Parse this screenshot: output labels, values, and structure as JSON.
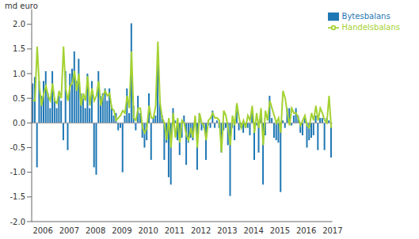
{
  "chart_data": {
    "type": "bar",
    "y_label": "md euro",
    "categories": [
      "2006",
      null,
      null,
      null,
      null,
      null,
      null,
      null,
      null,
      null,
      null,
      null,
      "2007",
      null,
      null,
      null,
      null,
      null,
      null,
      null,
      null,
      null,
      null,
      null,
      "2008",
      null,
      null,
      null,
      null,
      null,
      null,
      null,
      null,
      null,
      null,
      null,
      "2009",
      null,
      null,
      null,
      null,
      null,
      null,
      null,
      null,
      null,
      null,
      null,
      "2010",
      null,
      null,
      null,
      null,
      null,
      null,
      null,
      null,
      null,
      null,
      null,
      "2011",
      null,
      null,
      null,
      null,
      null,
      null,
      null,
      null,
      null,
      null,
      null,
      "2012",
      null,
      null,
      null,
      null,
      null,
      null,
      null,
      null,
      null,
      null,
      null,
      "2013",
      null,
      null,
      null,
      null,
      null,
      null,
      null,
      null,
      null,
      null,
      null,
      "2014",
      null,
      null,
      null,
      null,
      null,
      null,
      null,
      null,
      null,
      null,
      null,
      "2015",
      null,
      null,
      null,
      null,
      null,
      null,
      null,
      null,
      null,
      null,
      null,
      "2016",
      null,
      null,
      null,
      null,
      null,
      null,
      null,
      null,
      null,
      null,
      null,
      "2017",
      null,
      null,
      null,
      null
    ],
    "series": [
      {
        "name": "Bytesbalans",
        "type": "bar",
        "color": "#1f77b4",
        "values": [
          0.8,
          0.93,
          -0.9,
          0.85,
          0.55,
          0.85,
          1.05,
          0.6,
          0.3,
          1.05,
          0.5,
          0.3,
          0.55,
          0.45,
          -0.35,
          1.05,
          -0.55,
          1.0,
          1.1,
          1.45,
          0.85,
          1.3,
          0.6,
          0.5,
          0.3,
          1.0,
          0.3,
          0.85,
          -0.9,
          -1.05,
          1.05,
          0.55,
          0.6,
          0.7,
          0.45,
          0.7,
          0.35,
          0.15,
          0.2,
          -0.15,
          -0.1,
          -1.0,
          0.15,
          0.7,
          0.2,
          2.02,
          0.35,
          -0.15,
          0.55,
          0.2,
          -0.3,
          -0.5,
          -0.35,
          0.6,
          -0.75,
          0.1,
          0.15,
          1.35,
          0.45,
          0.15,
          -0.75,
          -0.4,
          -1.1,
          -1.25,
          0.3,
          0.05,
          -0.35,
          -0.65,
          -0.3,
          0.15,
          -0.85,
          -0.4,
          -0.3,
          -0.35,
          0.0,
          -0.95,
          0.2,
          -0.15,
          -0.1,
          -0.75,
          -0.05,
          -0.1,
          0.25,
          -0.1,
          0.05,
          -0.1,
          -0.6,
          -0.15,
          -0.1,
          -0.45,
          -1.48,
          -0.1,
          -0.35,
          0.35,
          -0.15,
          -0.1,
          -0.2,
          -0.1,
          -0.1,
          -0.25,
          0.2,
          -0.75,
          -0.05,
          -0.6,
          0.15,
          -1.25,
          -0.25,
          0.0,
          0.55,
          0.1,
          -0.3,
          -0.35,
          -0.4,
          -1.4,
          0.05,
          -0.1,
          0.3,
          0.3,
          -0.05,
          0.15,
          0.3,
          0.15,
          -0.2,
          -0.25,
          0.1,
          -0.5,
          -0.35,
          -0.3,
          -0.25,
          0.15,
          -0.55,
          0.1,
          0.1,
          -0.55,
          0.1,
          0.05,
          -0.7
        ]
      },
      {
        "name": "Handelsbalans",
        "type": "line",
        "color": "#a4d233",
        "values": [
          0.45,
          0.45,
          1.55,
          0.75,
          0.35,
          0.6,
          0.75,
          0.55,
          0.45,
          0.8,
          0.45,
          0.4,
          0.65,
          0.5,
          1.55,
          0.7,
          0.45,
          0.75,
          0.8,
          1.05,
          0.65,
          1.0,
          0.35,
          0.6,
          0.45,
          0.95,
          0.35,
          0.7,
          0.45,
          0.55,
          0.85,
          0.35,
          0.55,
          0.65,
          0.55,
          0.6,
          0.3,
          0.25,
          0.05,
          0.1,
          0.15,
          0.25,
          0.2,
          0.55,
          0.3,
          1.45,
          0.1,
          0.05,
          0.3,
          0.3,
          -0.1,
          -0.2,
          -0.1,
          0.35,
          0.1,
          0.1,
          0.35,
          1.65,
          0.4,
          0.1,
          0.0,
          -0.35,
          0.1,
          -0.5,
          0.2,
          -0.3,
          0.1,
          -0.4,
          0.05,
          0.0,
          -0.25,
          -0.35,
          -0.1,
          -0.3,
          0.15,
          -0.5,
          0.2,
          0.0,
          -0.05,
          -0.35,
          0.05,
          0.1,
          0.2,
          0.1,
          0.1,
          0.05,
          -0.6,
          0.25,
          0.15,
          -0.1,
          -0.45,
          0.15,
          -0.05,
          0.4,
          0.1,
          -0.1,
          0.05,
          -0.1,
          0.15,
          0.05,
          0.35,
          -0.2,
          0.2,
          -0.1,
          0.3,
          -0.45,
          0.25,
          0.05,
          0.45,
          0.3,
          0.15,
          0.0,
          0.1,
          -0.2,
          0.65,
          0.5,
          0.2,
          -0.05,
          0.3,
          0.2,
          0.2,
          0.1,
          -0.05,
          0.05,
          0.15,
          -0.05,
          -0.1,
          0.2,
          0.05,
          0.35,
          0.05,
          0.3,
          0.2,
          0.05,
          0.0,
          0.55,
          -0.1
        ]
      }
    ],
    "ylim": [
      -2,
      2.3
    ],
    "yticks": [
      {
        "value": -2,
        "label": "-2.0"
      },
      -1.5,
      {
        "value": -1,
        "label": "-1.0"
      },
      -0.5,
      {
        "value": 0,
        "label": "0.0"
      },
      0.5,
      {
        "value": 1,
        "label": "1.0"
      },
      1.5,
      {
        "value": 2,
        "label": "2.0"
      }
    ],
    "legend": "upper right",
    "grid": false
  }
}
